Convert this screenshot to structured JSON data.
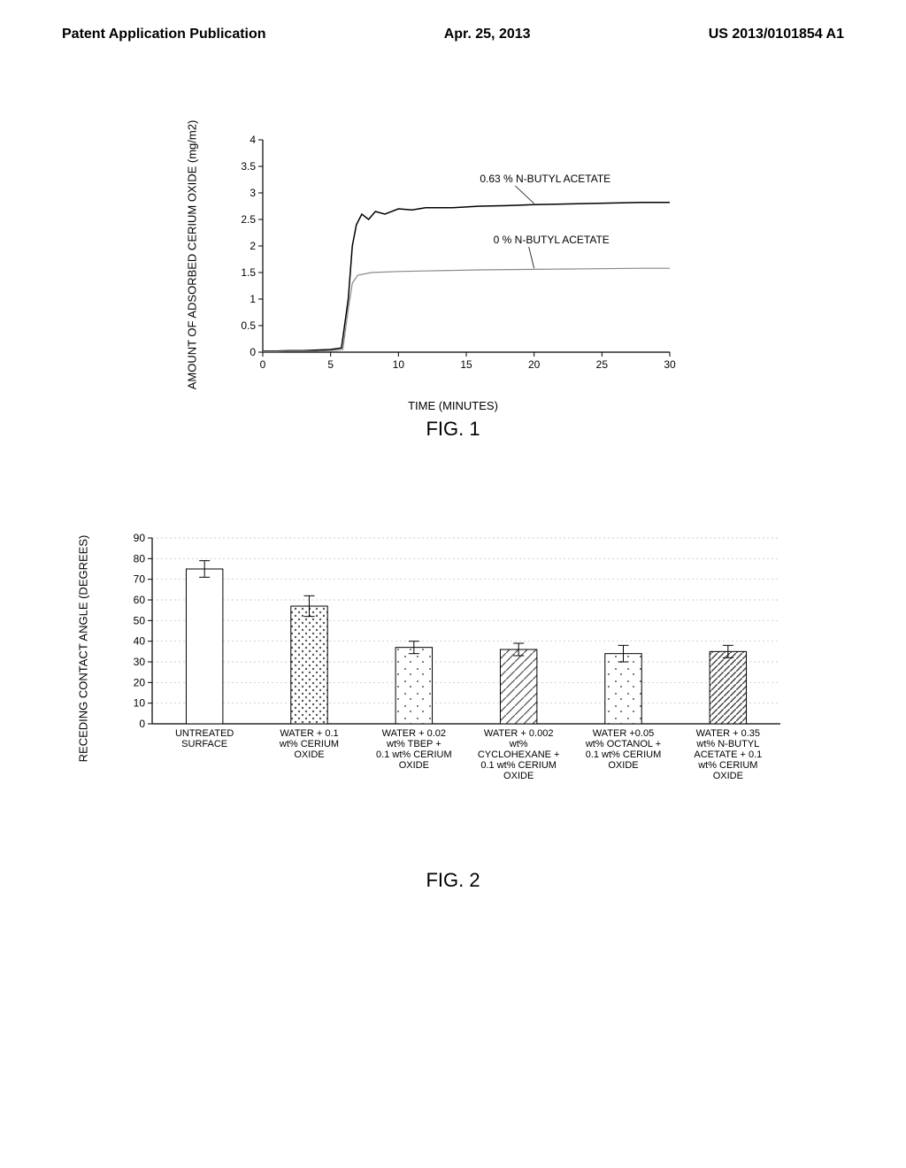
{
  "header": {
    "left": "Patent Application Publication",
    "center": "Apr. 25, 2013",
    "right": "US 2013/0101854 A1"
  },
  "fig1": {
    "type": "line",
    "caption": "FIG. 1",
    "xlabel": "TIME (MINUTES)",
    "ylabel": "AMOUNT OF ADSORBED CERIUM OXIDE (mg/m2)",
    "xlim": [
      0,
      30
    ],
    "ylim": [
      0,
      4
    ],
    "xticks": [
      0,
      5,
      10,
      15,
      20,
      25,
      30
    ],
    "yticks": [
      0,
      0.5,
      1,
      1.5,
      2,
      2.5,
      3,
      3.5,
      4
    ],
    "grid_color": "#cccccc",
    "axis_color": "#000000",
    "series": [
      {
        "name": "0.63 % N-BUTYL ACETATE",
        "color": "#000000",
        "width": 1.5,
        "label_xy": [
          16,
          3.2
        ],
        "leader_to": [
          20,
          2.8
        ],
        "points": [
          [
            0,
            0.02
          ],
          [
            1,
            0.02
          ],
          [
            2,
            0.03
          ],
          [
            3,
            0.03
          ],
          [
            4,
            0.04
          ],
          [
            5,
            0.05
          ],
          [
            5.8,
            0.08
          ],
          [
            6.3,
            1.0
          ],
          [
            6.6,
            2.0
          ],
          [
            6.9,
            2.4
          ],
          [
            7.3,
            2.6
          ],
          [
            7.8,
            2.5
          ],
          [
            8.3,
            2.65
          ],
          [
            9,
            2.6
          ],
          [
            10,
            2.7
          ],
          [
            11,
            2.68
          ],
          [
            12,
            2.72
          ],
          [
            14,
            2.72
          ],
          [
            16,
            2.75
          ],
          [
            18,
            2.76
          ],
          [
            20,
            2.78
          ],
          [
            24,
            2.8
          ],
          [
            28,
            2.82
          ],
          [
            30,
            2.82
          ]
        ]
      },
      {
        "name": "0 % N-BUTYL ACETATE",
        "color": "#888888",
        "width": 1.2,
        "label_xy": [
          17,
          2.05
        ],
        "leader_to": [
          20,
          1.58
        ],
        "points": [
          [
            0,
            0.01
          ],
          [
            1,
            0.01
          ],
          [
            2,
            0.02
          ],
          [
            3,
            0.02
          ],
          [
            4,
            0.02
          ],
          [
            5,
            0.03
          ],
          [
            5.9,
            0.05
          ],
          [
            6.3,
            0.8
          ],
          [
            6.6,
            1.3
          ],
          [
            7.0,
            1.45
          ],
          [
            8,
            1.5
          ],
          [
            10,
            1.52
          ],
          [
            12,
            1.53
          ],
          [
            16,
            1.55
          ],
          [
            20,
            1.56
          ],
          [
            24,
            1.57
          ],
          [
            28,
            1.58
          ],
          [
            30,
            1.58
          ]
        ]
      }
    ]
  },
  "fig2": {
    "type": "bar",
    "caption": "FIG. 2",
    "ylabel": "RECEDING CONTACT ANGLE (DEGREES)",
    "ylim": [
      0,
      90
    ],
    "yticks": [
      0,
      10,
      20,
      30,
      40,
      50,
      60,
      70,
      80,
      90
    ],
    "grid_color": "#bbbbbb",
    "axis_color": "#000000",
    "bar_width": 0.35,
    "bars": [
      {
        "label": [
          "UNTREATED",
          "SURFACE"
        ],
        "value": 75,
        "err": 4,
        "pattern": "none",
        "fill": "#ffffff"
      },
      {
        "label": [
          "WATER + 0.1",
          "wt% CERIUM",
          "OXIDE"
        ],
        "value": 57,
        "err": 5,
        "pattern": "dots",
        "fill": "#ffffff"
      },
      {
        "label": [
          "WATER + 0.02",
          "wt% TBEP +",
          "0.1 wt% CERIUM",
          "OXIDE"
        ],
        "value": 37,
        "err": 3,
        "pattern": "sparsedots",
        "fill": "#ffffff"
      },
      {
        "label": [
          "WATER + 0.002",
          "wt%",
          "CYCLOHEXANE +",
          "0.1 wt% CERIUM",
          "OXIDE"
        ],
        "value": 36,
        "err": 3,
        "pattern": "diag",
        "fill": "#ffffff"
      },
      {
        "label": [
          "WATER +0.05",
          "wt% OCTANOL +",
          "0.1 wt% CERIUM",
          "OXIDE"
        ],
        "value": 34,
        "err": 4,
        "pattern": "sparsedots",
        "fill": "#ffffff"
      },
      {
        "label": [
          "WATER + 0.35",
          "wt% N-BUTYL",
          "ACETATE + 0.1",
          "wt% CERIUM",
          "OXIDE"
        ],
        "value": 35,
        "err": 3,
        "pattern": "diag2",
        "fill": "#ffffff"
      }
    ]
  }
}
